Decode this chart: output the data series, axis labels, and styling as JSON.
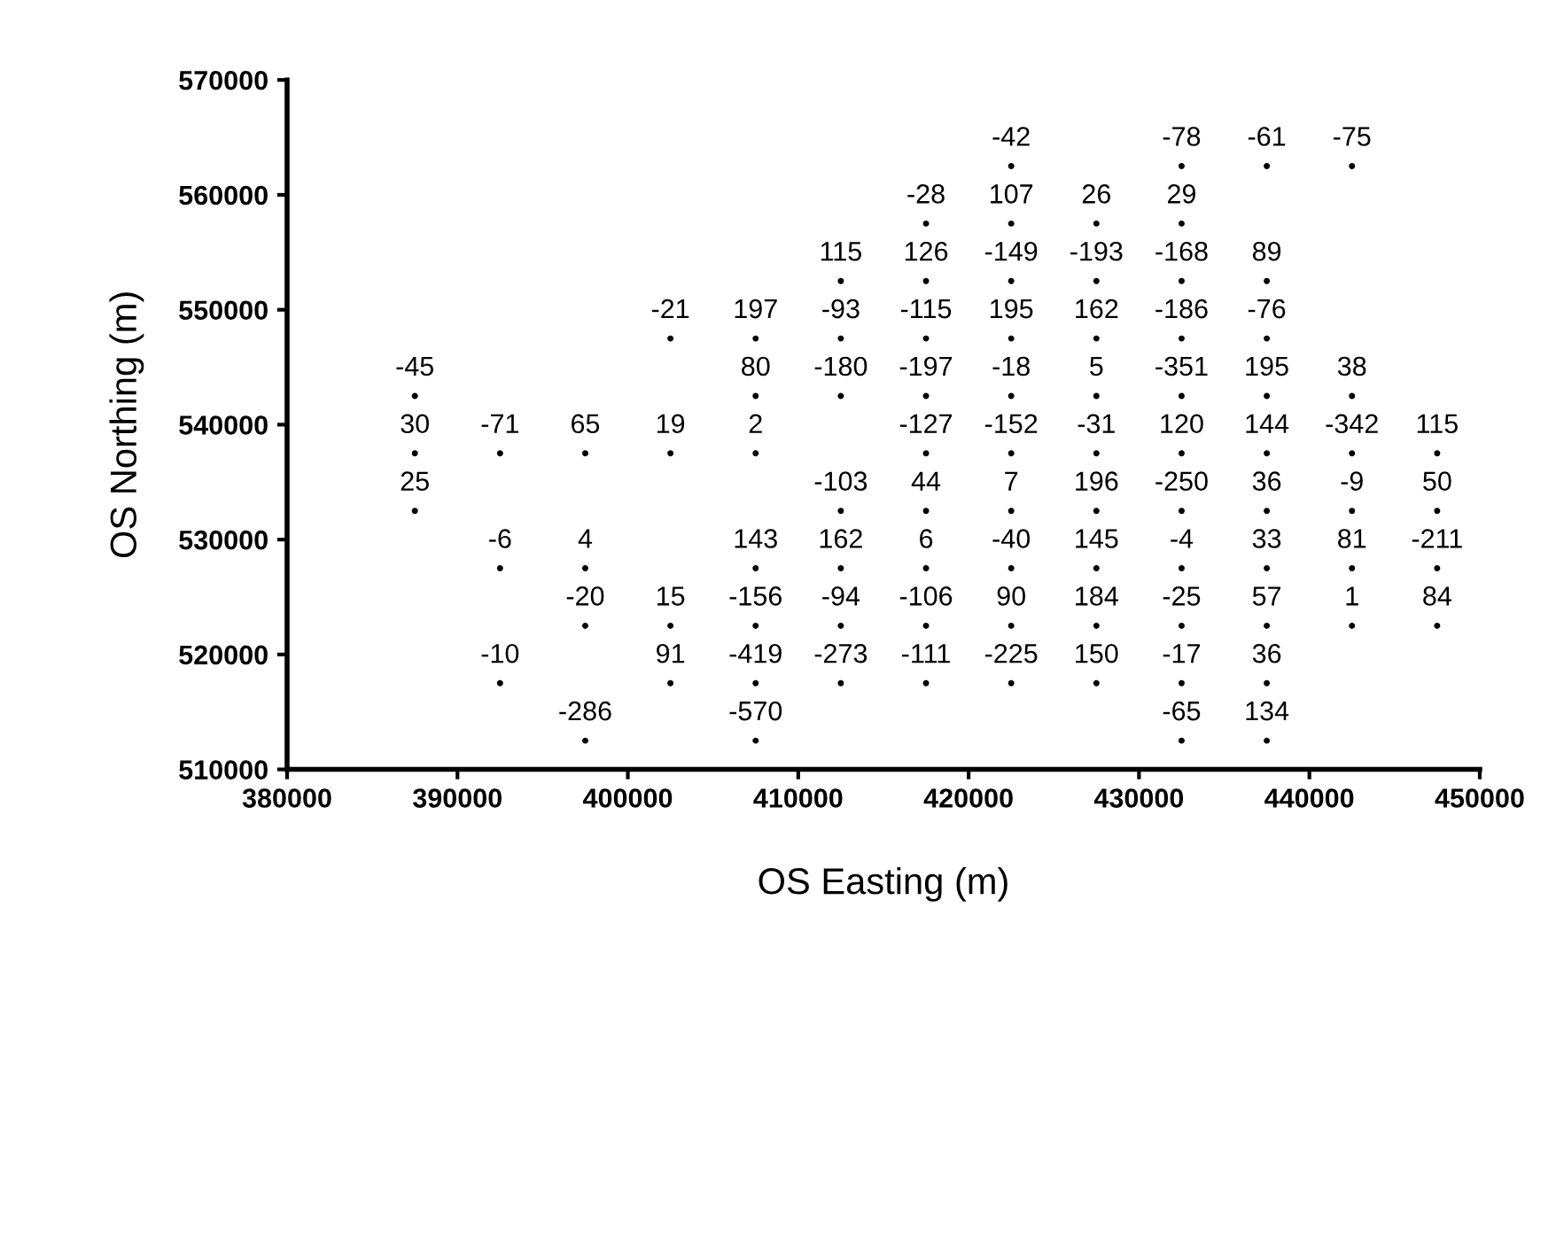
{
  "chart_data": {
    "type": "scatter",
    "xlabel": "OS Easting (m)",
    "ylabel": "OS Northing (m)",
    "xlim": [
      380000,
      450000
    ],
    "xticks": [
      380000,
      390000,
      400000,
      410000,
      420000,
      430000,
      440000,
      450000
    ],
    "ylim": [
      510000,
      570000
    ],
    "yticks": [
      510000,
      520000,
      530000,
      540000,
      550000,
      560000,
      570000
    ],
    "grid": false,
    "marker": "circle",
    "series": [
      {
        "color": "#000000",
        "x": [
          422500,
          432500,
          437500,
          442500,
          417500,
          422500,
          427500,
          432500,
          412500,
          417500,
          422500,
          427500,
          432500,
          437500,
          402500,
          407500,
          412500,
          417500,
          422500,
          427500,
          432500,
          437500,
          387500,
          407500,
          412500,
          417500,
          422500,
          427500,
          432500,
          437500,
          442500,
          387500,
          392500,
          397500,
          402500,
          407500,
          417500,
          422500,
          427500,
          432500,
          437500,
          442500,
          447500,
          387500,
          412500,
          417500,
          422500,
          427500,
          432500,
          437500,
          442500,
          447500,
          392500,
          397500,
          407500,
          412500,
          417500,
          422500,
          427500,
          432500,
          437500,
          442500,
          447500,
          397500,
          402500,
          407500,
          412500,
          417500,
          422500,
          427500,
          432500,
          437500,
          442500,
          447500,
          392500,
          402500,
          407500,
          412500,
          417500,
          422500,
          427500,
          432500,
          437500,
          397500,
          407500,
          432500,
          437500
        ],
        "values": [
          562500,
          562500,
          562500,
          562500,
          557500,
          557500,
          557500,
          557500,
          552500,
          552500,
          552500,
          552500,
          552500,
          552500,
          547500,
          547500,
          547500,
          547500,
          547500,
          547500,
          547500,
          547500,
          542500,
          542500,
          542500,
          542500,
          542500,
          542500,
          542500,
          542500,
          542500,
          537500,
          537500,
          537500,
          537500,
          537500,
          537500,
          537500,
          537500,
          537500,
          537500,
          537500,
          537500,
          532500,
          532500,
          532500,
          532500,
          532500,
          532500,
          532500,
          532500,
          532500,
          527500,
          527500,
          527500,
          527500,
          527500,
          527500,
          527500,
          527500,
          527500,
          527500,
          527500,
          522500,
          522500,
          522500,
          522500,
          522500,
          522500,
          522500,
          522500,
          522500,
          522500,
          522500,
          517500,
          517500,
          517500,
          517500,
          517500,
          517500,
          517500,
          517500,
          517500,
          512500,
          512500,
          512500,
          512500
        ]
      }
    ],
    "annotations": [
      {
        "text": "-42",
        "x": 422500,
        "y": 562500
      },
      {
        "text": "-78",
        "x": 432500,
        "y": 562500
      },
      {
        "text": "-61",
        "x": 437500,
        "y": 562500
      },
      {
        "text": "-75",
        "x": 442500,
        "y": 562500
      },
      {
        "text": "-28",
        "x": 417500,
        "y": 557500
      },
      {
        "text": "107",
        "x": 422500,
        "y": 557500
      },
      {
        "text": "26",
        "x": 427500,
        "y": 557500
      },
      {
        "text": "29",
        "x": 432500,
        "y": 557500
      },
      {
        "text": "115",
        "x": 412500,
        "y": 552500
      },
      {
        "text": "126",
        "x": 417500,
        "y": 552500
      },
      {
        "text": "-149",
        "x": 422500,
        "y": 552500
      },
      {
        "text": "-193",
        "x": 427500,
        "y": 552500
      },
      {
        "text": "-168",
        "x": 432500,
        "y": 552500
      },
      {
        "text": "89",
        "x": 437500,
        "y": 552500
      },
      {
        "text": "-21",
        "x": 402500,
        "y": 547500
      },
      {
        "text": "197",
        "x": 407500,
        "y": 547500
      },
      {
        "text": "-93",
        "x": 412500,
        "y": 547500
      },
      {
        "text": "-115",
        "x": 417500,
        "y": 547500
      },
      {
        "text": "195",
        "x": 422500,
        "y": 547500
      },
      {
        "text": "162",
        "x": 427500,
        "y": 547500
      },
      {
        "text": "-186",
        "x": 432500,
        "y": 547500
      },
      {
        "text": "-76",
        "x": 437500,
        "y": 547500
      },
      {
        "text": "-45",
        "x": 387500,
        "y": 542500
      },
      {
        "text": "80",
        "x": 407500,
        "y": 542500
      },
      {
        "text": "-180",
        "x": 412500,
        "y": 542500
      },
      {
        "text": "-197",
        "x": 417500,
        "y": 542500
      },
      {
        "text": "-18",
        "x": 422500,
        "y": 542500
      },
      {
        "text": "5",
        "x": 427500,
        "y": 542500
      },
      {
        "text": "-351",
        "x": 432500,
        "y": 542500
      },
      {
        "text": "195",
        "x": 437500,
        "y": 542500
      },
      {
        "text": "38",
        "x": 442500,
        "y": 542500
      },
      {
        "text": "30",
        "x": 387500,
        "y": 537500
      },
      {
        "text": "-71",
        "x": 392500,
        "y": 537500
      },
      {
        "text": "65",
        "x": 397500,
        "y": 537500
      },
      {
        "text": "19",
        "x": 402500,
        "y": 537500
      },
      {
        "text": "2",
        "x": 407500,
        "y": 537500
      },
      {
        "text": "-127",
        "x": 417500,
        "y": 537500
      },
      {
        "text": "-152",
        "x": 422500,
        "y": 537500
      },
      {
        "text": "-31",
        "x": 427500,
        "y": 537500
      },
      {
        "text": "120",
        "x": 432500,
        "y": 537500
      },
      {
        "text": "144",
        "x": 437500,
        "y": 537500
      },
      {
        "text": "-342",
        "x": 442500,
        "y": 537500
      },
      {
        "text": "115",
        "x": 447500,
        "y": 537500
      },
      {
        "text": "25",
        "x": 387500,
        "y": 532500
      },
      {
        "text": "-103",
        "x": 412500,
        "y": 532500
      },
      {
        "text": "44",
        "x": 417500,
        "y": 532500
      },
      {
        "text": "7",
        "x": 422500,
        "y": 532500
      },
      {
        "text": "196",
        "x": 427500,
        "y": 532500
      },
      {
        "text": "-250",
        "x": 432500,
        "y": 532500
      },
      {
        "text": "36",
        "x": 437500,
        "y": 532500
      },
      {
        "text": "-9",
        "x": 442500,
        "y": 532500
      },
      {
        "text": "50",
        "x": 447500,
        "y": 532500
      },
      {
        "text": "-6",
        "x": 392500,
        "y": 527500
      },
      {
        "text": "4",
        "x": 397500,
        "y": 527500
      },
      {
        "text": "143",
        "x": 407500,
        "y": 527500
      },
      {
        "text": "162",
        "x": 412500,
        "y": 527500
      },
      {
        "text": "6",
        "x": 417500,
        "y": 527500
      },
      {
        "text": "-40",
        "x": 422500,
        "y": 527500
      },
      {
        "text": "145",
        "x": 427500,
        "y": 527500
      },
      {
        "text": "-4",
        "x": 432500,
        "y": 527500
      },
      {
        "text": "33",
        "x": 437500,
        "y": 527500
      },
      {
        "text": "81",
        "x": 442500,
        "y": 527500
      },
      {
        "text": "-211",
        "x": 447500,
        "y": 527500
      },
      {
        "text": "-20",
        "x": 397500,
        "y": 522500
      },
      {
        "text": "15",
        "x": 402500,
        "y": 522500
      },
      {
        "text": "-156",
        "x": 407500,
        "y": 522500
      },
      {
        "text": "-94",
        "x": 412500,
        "y": 522500
      },
      {
        "text": "-106",
        "x": 417500,
        "y": 522500
      },
      {
        "text": "90",
        "x": 422500,
        "y": 522500
      },
      {
        "text": "184",
        "x": 427500,
        "y": 522500
      },
      {
        "text": "-25",
        "x": 432500,
        "y": 522500
      },
      {
        "text": "57",
        "x": 437500,
        "y": 522500
      },
      {
        "text": "1",
        "x": 442500,
        "y": 522500
      },
      {
        "text": "84",
        "x": 447500,
        "y": 522500
      },
      {
        "text": "-10",
        "x": 392500,
        "y": 517500
      },
      {
        "text": "91",
        "x": 402500,
        "y": 517500
      },
      {
        "text": "-419",
        "x": 407500,
        "y": 517500
      },
      {
        "text": "-273",
        "x": 412500,
        "y": 517500
      },
      {
        "text": "-111",
        "x": 417500,
        "y": 517500
      },
      {
        "text": "-225",
        "x": 422500,
        "y": 517500
      },
      {
        "text": "150",
        "x": 427500,
        "y": 517500
      },
      {
        "text": "-17",
        "x": 432500,
        "y": 517500
      },
      {
        "text": "36",
        "x": 437500,
        "y": 517500
      },
      {
        "text": "-286",
        "x": 397500,
        "y": 512500
      },
      {
        "text": "-570",
        "x": 407500,
        "y": 512500
      },
      {
        "text": "-65",
        "x": 432500,
        "y": 512500
      },
      {
        "text": "134",
        "x": 437500,
        "y": 512500
      }
    ]
  }
}
